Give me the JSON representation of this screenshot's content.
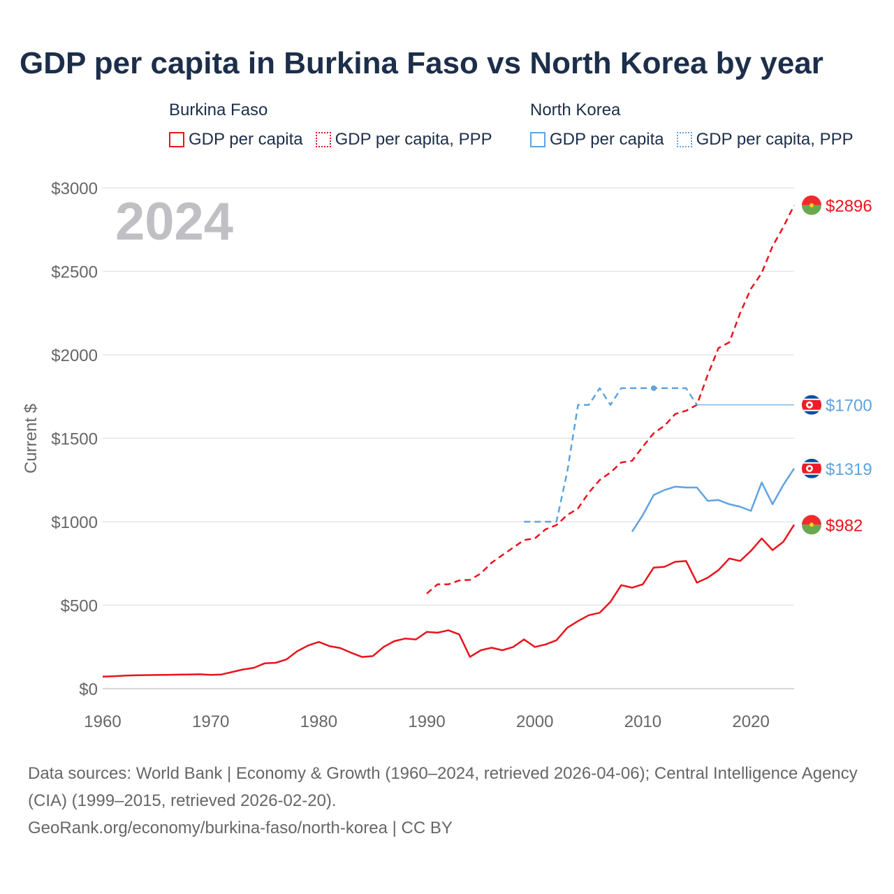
{
  "title": "GDP per capita in Burkina Faso vs North Korea by year",
  "legend": {
    "groups": [
      {
        "name": "Burkina Faso",
        "items": [
          "GDP per capita",
          "GDP per capita, PPP"
        ]
      },
      {
        "name": "North Korea",
        "items": [
          "GDP per capita",
          "GDP per capita, PPP"
        ]
      }
    ]
  },
  "year_watermark": "2024",
  "end_labels": {
    "bf_ppp": "$2896",
    "nk_ppp": "$1700",
    "nk_gdp": "$1319",
    "bf_gdp": "$982"
  },
  "footer": {
    "sources": "Data sources: World Bank | Economy & Growth (1960–2024, retrieved 2026-04-06); Central Intelligence Agency (CIA) (1999–2015, retrieved 2026-02-20).",
    "credit": "GeoRank.org/economy/burkina-faso/north-korea | CC BY"
  },
  "colors": {
    "burkina_faso": "#e8141c",
    "north_korea": "#5fa3e0",
    "title": "#1c2e4a",
    "axis_text": "#666666"
  },
  "chart_data": {
    "type": "line",
    "ylabel": "Current $",
    "xlabel": "",
    "xlim": [
      1960,
      2024
    ],
    "ylim": [
      0,
      3000
    ],
    "yticks": [
      0,
      500,
      1000,
      1500,
      2000,
      2500,
      3000
    ],
    "ytick_labels": [
      "$0",
      "$500",
      "$1000",
      "$1500",
      "$2000",
      "$2500",
      "$3000"
    ],
    "xticks": [
      1960,
      1970,
      1980,
      1990,
      2000,
      2010,
      2020
    ],
    "xtick_labels": [
      "1960",
      "1970",
      "1980",
      "1990",
      "2000",
      "2010",
      "2020"
    ],
    "series": [
      {
        "id": "bf_gdp",
        "name": "Burkina Faso GDP per capita",
        "country": "burkina_faso",
        "style": "solid",
        "x": [
          1960,
          1961,
          1962,
          1963,
          1964,
          1965,
          1966,
          1967,
          1968,
          1969,
          1970,
          1971,
          1972,
          1973,
          1974,
          1975,
          1976,
          1977,
          1978,
          1979,
          1980,
          1981,
          1982,
          1983,
          1984,
          1985,
          1986,
          1987,
          1988,
          1989,
          1990,
          1991,
          1992,
          1993,
          1994,
          1995,
          1996,
          1997,
          1998,
          1999,
          2000,
          2001,
          2002,
          2003,
          2004,
          2005,
          2006,
          2007,
          2008,
          2009,
          2010,
          2011,
          2012,
          2013,
          2014,
          2015,
          2016,
          2017,
          2018,
          2019,
          2020,
          2021,
          2022,
          2023,
          2024
        ],
        "values": [
          72,
          74,
          78,
          80,
          81,
          82,
          83,
          84,
          85,
          86,
          83,
          85,
          100,
          115,
          125,
          152,
          155,
          175,
          224,
          258,
          280,
          255,
          243,
          215,
          190,
          195,
          250,
          285,
          300,
          295,
          340,
          335,
          350,
          325,
          190,
          230,
          245,
          230,
          250,
          295,
          250,
          265,
          290,
          365,
          405,
          440,
          455,
          520,
          620,
          605,
          625,
          725,
          730,
          760,
          765,
          635,
          665,
          710,
          780,
          765,
          825,
          900,
          830,
          880,
          982
        ]
      },
      {
        "id": "bf_ppp",
        "name": "Burkina Faso GDP per capita, PPP",
        "country": "burkina_faso",
        "style": "dashed",
        "x": [
          1990,
          1991,
          1992,
          1993,
          1994,
          1995,
          1996,
          1997,
          1998,
          1999,
          2000,
          2001,
          2002,
          2003,
          2004,
          2005,
          2006,
          2007,
          2008,
          2009,
          2010,
          2011,
          2012,
          2013,
          2014,
          2015,
          2016,
          2017,
          2018,
          2019,
          2020,
          2021,
          2022,
          2023,
          2024
        ],
        "values": [
          570,
          625,
          625,
          648,
          652,
          690,
          755,
          800,
          845,
          890,
          900,
          955,
          980,
          1040,
          1080,
          1175,
          1250,
          1295,
          1355,
          1365,
          1450,
          1530,
          1575,
          1645,
          1665,
          1700,
          1880,
          2040,
          2075,
          2250,
          2395,
          2490,
          2650,
          2765,
          2896
        ]
      },
      {
        "id": "nk_gdp",
        "name": "North Korea GDP per capita",
        "country": "north_korea",
        "style": "solid",
        "x": [
          2009,
          2010,
          2011,
          2012,
          2013,
          2014,
          2015,
          2016,
          2017,
          2018,
          2019,
          2020,
          2021,
          2022,
          2023,
          2024
        ],
        "values": [
          940,
          1040,
          1160,
          1190,
          1210,
          1205,
          1205,
          1125,
          1130,
          1105,
          1090,
          1065,
          1235,
          1105,
          1220,
          1319
        ]
      },
      {
        "id": "nk_ppp",
        "name": "North Korea GDP per capita, PPP",
        "country": "north_korea",
        "style": "dashed",
        "x": [
          1999,
          2000,
          2001,
          2002,
          2003,
          2004,
          2005,
          2006,
          2007,
          2008,
          2009,
          2010,
          2011,
          2012,
          2013,
          2014,
          2015
        ],
        "values": [
          1000,
          1000,
          1000,
          1000,
          1300,
          1700,
          1700,
          1800,
          1700,
          1800,
          1800,
          1800,
          1800,
          1800,
          1800,
          1800,
          1700
        ],
        "highlight_x": 2011,
        "extension_to": 2024
      }
    ]
  }
}
